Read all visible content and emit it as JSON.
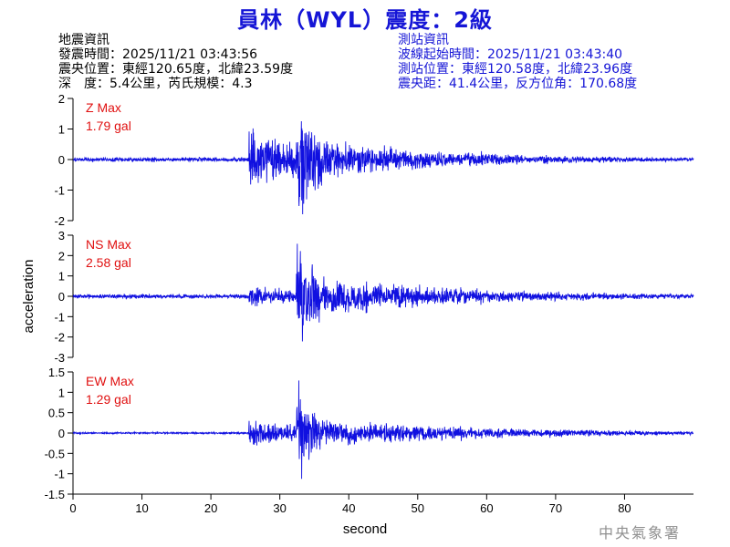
{
  "title": "員林（WYL）震度：2級",
  "quake_info": {
    "heading": "地震資訊",
    "time": "發震時間：2025/11/21 03:43:56",
    "epicenter": "震央位置：東經120.65度，北緯23.59度",
    "depth_magnitude": "深　度：5.4公里，芮氏規模：4.3"
  },
  "station_info": {
    "heading": "測站資訊",
    "wave_start": "波線起始時間：2025/11/21 03:43:40",
    "location": "測站位置：東經120.58度，北緯23.96度",
    "distance": "震央距：41.4公里，反方位角：170.68度"
  },
  "watermark": "中央氣象署",
  "colors": {
    "trace": "#1010e0",
    "label": "#e01010",
    "title": "#1515d6"
  },
  "chart_data": [
    {
      "type": "line",
      "component": "Z",
      "label_line1": "Z Max",
      "label_line2": "1.79 gal",
      "peak": 1.79,
      "ylim": [
        -2,
        2
      ],
      "yticks": [
        "2",
        "1",
        "0",
        "-1",
        "-2"
      ],
      "xlim": [
        0,
        90
      ],
      "xticks": [
        "0",
        "10",
        "20",
        "30",
        "40",
        "50",
        "60",
        "70",
        "80"
      ],
      "ylabel": "",
      "xlabel": "",
      "noise_amplitude": 0.03,
      "p_arrival": 25.5,
      "s_arrival": 32.4,
      "p_amplitude": 0.4,
      "s_amplitude": 1.0,
      "coda_amplitude": 0.3,
      "decay_seconds": 22
    },
    {
      "type": "line",
      "component": "NS",
      "label_line1": "NS Max",
      "label_line2": "2.58 gal",
      "peak": 2.58,
      "ylim": [
        -3,
        3
      ],
      "yticks": [
        "3",
        "2",
        "1",
        "0",
        "-1",
        "-2",
        "-3"
      ],
      "xlim": [
        0,
        90
      ],
      "xticks": [
        "0",
        "10",
        "20",
        "30",
        "40",
        "50",
        "60",
        "70",
        "80"
      ],
      "ylabel": "acceleration",
      "xlabel": "",
      "noise_amplitude": 0.03,
      "p_arrival": 25.5,
      "s_arrival": 32.4,
      "p_amplitude": 0.15,
      "s_amplitude": 1.0,
      "coda_amplitude": 0.3,
      "decay_seconds": 24
    },
    {
      "type": "line",
      "component": "EW",
      "label_line1": "EW Max",
      "label_line2": "1.29 gal",
      "peak": 1.29,
      "ylim": [
        -1.5,
        1.5
      ],
      "yticks": [
        "1.5",
        "1",
        "0.5",
        "0",
        "-0.5",
        "-1",
        "-1.5"
      ],
      "xlim": [
        0,
        90
      ],
      "xticks": [
        "0",
        "10",
        "20",
        "30",
        "40",
        "50",
        "60",
        "70",
        "80"
      ],
      "ylabel": "",
      "xlabel": "second",
      "noise_amplitude": 0.02,
      "p_arrival": 25.5,
      "s_arrival": 32.4,
      "p_amplitude": 0.3,
      "s_amplitude": 1.0,
      "coda_amplitude": 0.35,
      "decay_seconds": 26
    }
  ]
}
